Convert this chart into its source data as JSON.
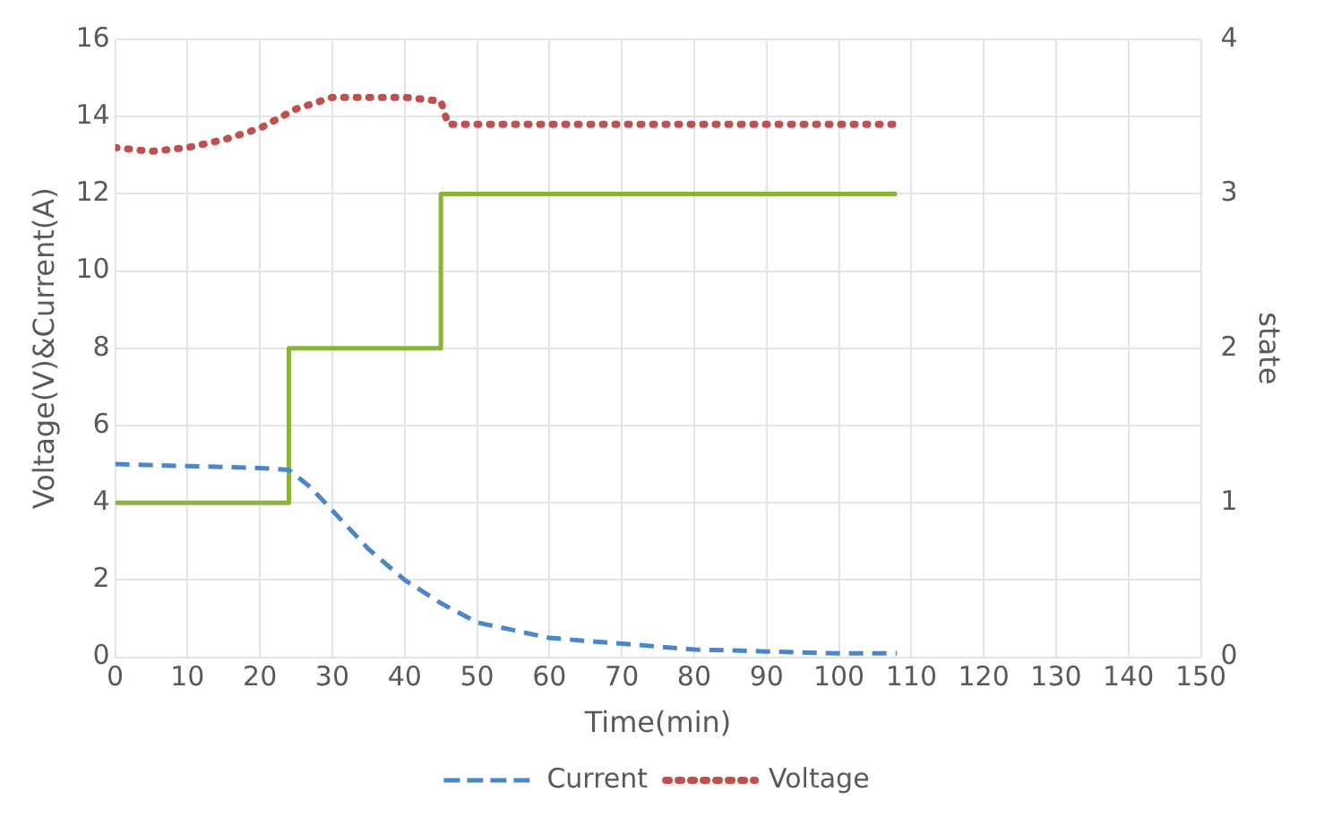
{
  "chart_data": {
    "type": "line",
    "xlabel": "Time(min)",
    "ylabel": "Voltage(V)&Current(A)",
    "y2label": "state",
    "xlim": [
      0,
      150
    ],
    "xticks": [
      0,
      10,
      20,
      30,
      40,
      50,
      60,
      70,
      80,
      90,
      100,
      110,
      120,
      130,
      140,
      150
    ],
    "ylim": [
      0,
      16
    ],
    "yticks": [
      0,
      2,
      4,
      6,
      8,
      10,
      12,
      14,
      16
    ],
    "y2lim": [
      0,
      4
    ],
    "y2ticks": [
      0,
      1,
      2,
      3,
      4
    ],
    "grid": true,
    "legend": "bottom",
    "marker": "none",
    "series": [
      {
        "name": "Current",
        "color": "#4a86c8",
        "line_style": "dashed",
        "x": [
          0,
          10,
          20,
          24,
          27,
          30,
          35,
          40,
          45,
          50,
          55,
          60,
          70,
          80,
          90,
          100,
          108
        ],
        "values": [
          5,
          4.95,
          4.9,
          4.85,
          4.4,
          3.8,
          2.8,
          2.0,
          1.4,
          0.9,
          0.7,
          0.5,
          0.35,
          0.2,
          0.15,
          0.1,
          0.1
        ]
      },
      {
        "name": "Voltage",
        "color": "#c0504d",
        "line_style": "dotted",
        "x": [
          0,
          5,
          10,
          15,
          20,
          25,
          30,
          35,
          40,
          45,
          46,
          60,
          80,
          100,
          108
        ],
        "values": [
          13.2,
          13.1,
          13.2,
          13.4,
          13.7,
          14.2,
          14.5,
          14.5,
          14.5,
          14.4,
          13.8,
          13.8,
          13.8,
          13.8,
          13.8
        ]
      },
      {
        "type": "step",
        "axis": "y2",
        "color": "#8ab33a",
        "line_style": "solid",
        "x": [
          0,
          24,
          45,
          108
        ],
        "values": [
          1,
          2,
          3,
          3
        ]
      }
    ]
  }
}
